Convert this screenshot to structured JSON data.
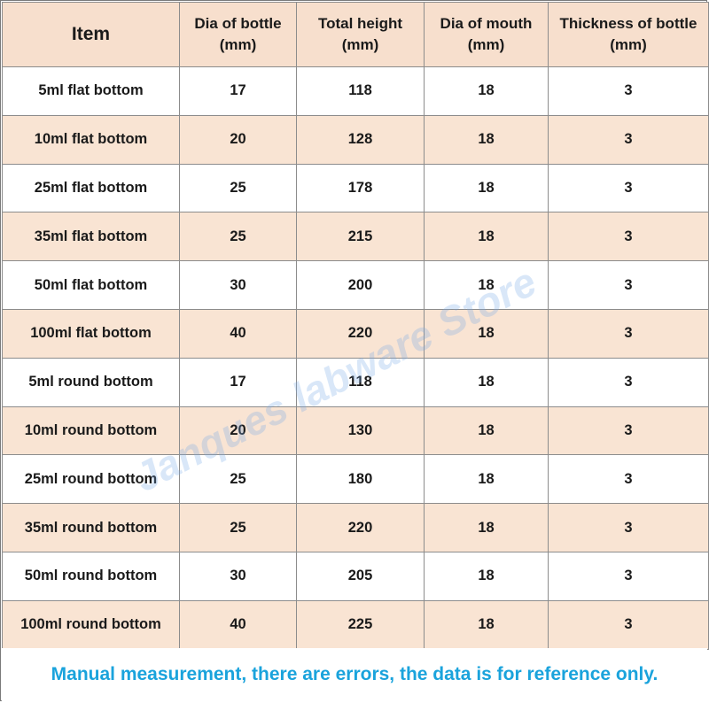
{
  "table": {
    "headers": [
      {
        "line1": "Item",
        "line2": ""
      },
      {
        "line1": "Dia of bottle",
        "line2": "(mm)"
      },
      {
        "line1": "Total height",
        "line2": "(mm)"
      },
      {
        "line1": "Dia of mouth",
        "line2": "(mm)"
      },
      {
        "line1": "Thickness of bottle",
        "line2": "(mm)"
      }
    ],
    "rows": [
      [
        "5ml flat bottom",
        "17",
        "118",
        "18",
        "3"
      ],
      [
        "10ml flat bottom",
        "20",
        "128",
        "18",
        "3"
      ],
      [
        "25ml flat bottom",
        "25",
        "178",
        "18",
        "3"
      ],
      [
        "35ml flat bottom",
        "25",
        "215",
        "18",
        "3"
      ],
      [
        "50ml flat bottom",
        "30",
        "200",
        "18",
        "3"
      ],
      [
        "100ml flat bottom",
        "40",
        "220",
        "18",
        "3"
      ],
      [
        "5ml round bottom",
        "17",
        "118",
        "18",
        "3"
      ],
      [
        "10ml round bottom",
        "20",
        "130",
        "18",
        "3"
      ],
      [
        "25ml round bottom",
        "25",
        "180",
        "18",
        "3"
      ],
      [
        "35ml round bottom",
        "25",
        "220",
        "18",
        "3"
      ],
      [
        "50ml round bottom",
        "30",
        "205",
        "18",
        "3"
      ],
      [
        "100ml round bottom",
        "40",
        "225",
        "18",
        "3"
      ]
    ]
  },
  "watermark": "Janques labware Store",
  "footer_note": "Manual measurement, there are errors, the data is for reference only.",
  "colors": {
    "header_bg": "#f7dfcd",
    "alt_row_bg": "#f9e4d3",
    "note_text": "#1aa3dc",
    "watermark": "#78aae6"
  }
}
